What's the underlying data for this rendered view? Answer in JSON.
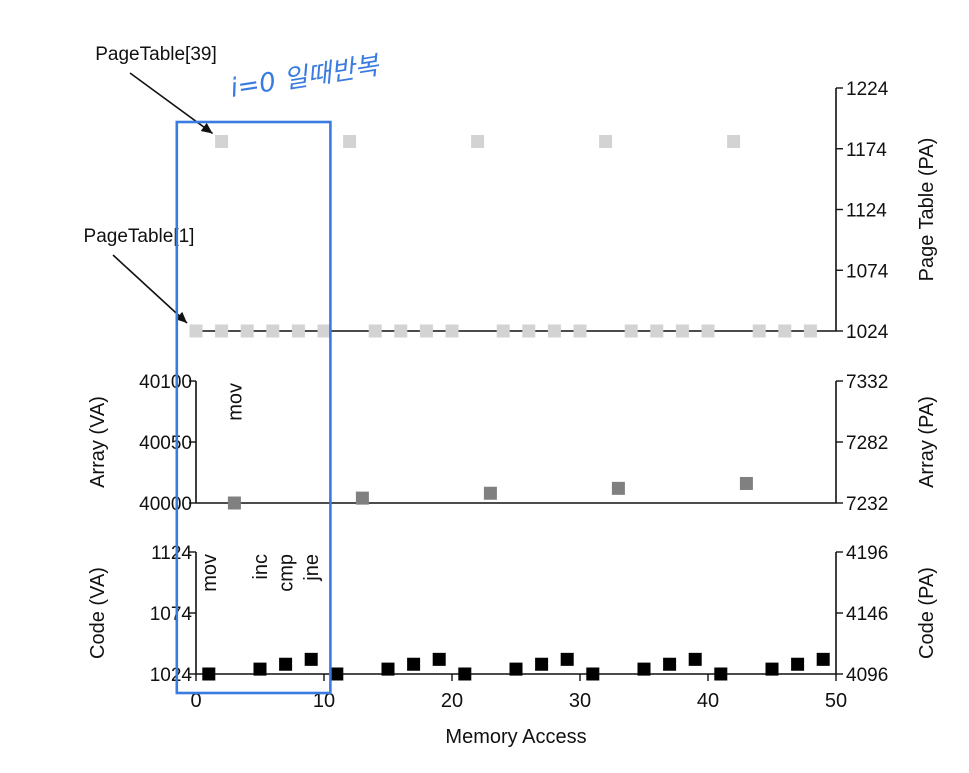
{
  "chart_data": {
    "type": "scatter",
    "xlabel": "Memory Access",
    "xlim": [
      0,
      50
    ],
    "xticks": [
      0,
      10,
      20,
      30,
      40,
      50
    ],
    "panels": [
      {
        "name": "page-table",
        "ylabel_left": "",
        "ylabel_right": "Page Table (PA)",
        "right_ylim": [
          1024,
          1224
        ],
        "right_ticks": [
          1024,
          1074,
          1124,
          1174,
          1224
        ],
        "color": "#d3d3d3",
        "points": [
          [
            0,
            1024
          ],
          [
            2,
            1024
          ],
          [
            4,
            1024
          ],
          [
            6,
            1024
          ],
          [
            8,
            1024
          ],
          [
            10,
            1024
          ],
          [
            14,
            1024
          ],
          [
            16,
            1024
          ],
          [
            18,
            1024
          ],
          [
            20,
            1024
          ],
          [
            24,
            1024
          ],
          [
            26,
            1024
          ],
          [
            28,
            1024
          ],
          [
            30,
            1024
          ],
          [
            34,
            1024
          ],
          [
            36,
            1024
          ],
          [
            38,
            1024
          ],
          [
            40,
            1024
          ],
          [
            44,
            1024
          ],
          [
            46,
            1024
          ],
          [
            48,
            1024
          ],
          [
            2,
            1180
          ],
          [
            12,
            1180
          ],
          [
            22,
            1180
          ],
          [
            32,
            1180
          ],
          [
            42,
            1180
          ]
        ],
        "annotations": []
      },
      {
        "name": "array",
        "ylabel_left": "Array (VA)",
        "ylabel_right": "Array (PA)",
        "left_ylim": [
          40000,
          40100
        ],
        "left_ticks": [
          40000,
          40050,
          40100
        ],
        "right_ylim": [
          7232,
          7332
        ],
        "right_ticks": [
          7232,
          7282,
          7332
        ],
        "color": "#808080",
        "points": [
          [
            3,
            40000
          ],
          [
            13,
            40004
          ],
          [
            23,
            40008
          ],
          [
            33,
            40012
          ],
          [
            43,
            40016
          ]
        ],
        "annotations": [
          {
            "text": "mov",
            "x": 3
          }
        ]
      },
      {
        "name": "code",
        "ylabel_left": "Code (VA)",
        "ylabel_right": "Code (PA)",
        "left_ylim": [
          1024,
          1124
        ],
        "left_ticks": [
          1024,
          1074,
          1124
        ],
        "right_ylim": [
          4096,
          4196
        ],
        "right_ticks": [
          4096,
          4146,
          4196
        ],
        "color": "#000000",
        "points": [
          [
            1,
            1024
          ],
          [
            5,
            1028
          ],
          [
            7,
            1032
          ],
          [
            9,
            1036
          ],
          [
            11,
            1024
          ],
          [
            15,
            1028
          ],
          [
            17,
            1032
          ],
          [
            19,
            1036
          ],
          [
            21,
            1024
          ],
          [
            25,
            1028
          ],
          [
            27,
            1032
          ],
          [
            29,
            1036
          ],
          [
            31,
            1024
          ],
          [
            35,
            1028
          ],
          [
            37,
            1032
          ],
          [
            39,
            1036
          ],
          [
            41,
            1024
          ],
          [
            45,
            1028
          ],
          [
            47,
            1032
          ],
          [
            49,
            1036
          ]
        ],
        "annotations": [
          {
            "text": "mov",
            "x": 1
          },
          {
            "text": "inc",
            "x": 5
          },
          {
            "text": "cmp",
            "x": 7
          },
          {
            "text": "jne",
            "x": 9
          }
        ]
      }
    ],
    "callouts": [
      {
        "text": "PageTable[39]",
        "target_x": 2,
        "target_y": 1180
      },
      {
        "text": "PageTable[1]",
        "target_x": 0,
        "target_y": 1024
      }
    ],
    "handwritten_note": "i=0 일때반복",
    "highlight_box": {
      "x_from": -1.5,
      "x_to": 10.5,
      "color": "#3a7be0"
    }
  }
}
